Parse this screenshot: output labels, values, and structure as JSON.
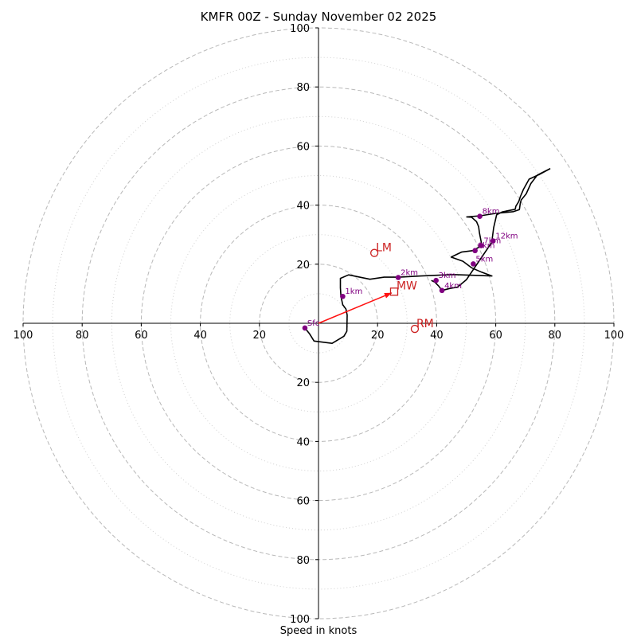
{
  "chart_data": {
    "type": "hodograph",
    "title": "KMFR 00Z - Sunday November 02 2025",
    "xlabel": "Speed in knots",
    "range": [
      -100,
      100
    ],
    "rings_major": [
      20,
      40,
      60,
      80,
      100
    ],
    "rings_minor": [
      10,
      30,
      50,
      70,
      90
    ],
    "x_ticks": [
      "100",
      "80",
      "60",
      "40",
      "20",
      "20",
      "40",
      "60",
      "80",
      "100"
    ],
    "y_ticks": [
      "100",
      "80",
      "60",
      "40",
      "20",
      "20",
      "40",
      "60",
      "80",
      "100"
    ],
    "trace": [
      [
        -4.6,
        -1.6
      ],
      [
        -3,
        -3.6
      ],
      [
        -1.5,
        -6
      ],
      [
        4.6,
        -6.8
      ],
      [
        8.6,
        -4.4
      ],
      [
        9.6,
        -2.7
      ],
      [
        9.7,
        2.8
      ],
      [
        9.3,
        4.8
      ],
      [
        8.2,
        6.3
      ],
      [
        7.6,
        9.1
      ],
      [
        7.4,
        12
      ],
      [
        7.4,
        15.2
      ],
      [
        10.2,
        16.4
      ],
      [
        17.4,
        14.9
      ],
      [
        22.2,
        15.6
      ],
      [
        27.2,
        15.6
      ],
      [
        34.7,
        16.0
      ],
      [
        45.5,
        16.5
      ],
      [
        58.7,
        16.0
      ],
      [
        55.2,
        17.3
      ],
      [
        51.8,
        18.8
      ],
      [
        48.9,
        21.0
      ],
      [
        44.9,
        22.4
      ],
      [
        48.4,
        24.1
      ],
      [
        52.4,
        24.6
      ],
      [
        55.3,
        26.4
      ],
      [
        55.0,
        28.0
      ],
      [
        54.5,
        30.5
      ],
      [
        54.2,
        32.7
      ],
      [
        53.5,
        34.4
      ],
      [
        51.8,
        35.9
      ],
      [
        50.2,
        36.0
      ],
      [
        54.8,
        36.4
      ],
      [
        60.0,
        37.2
      ],
      [
        66.0,
        37.8
      ],
      [
        68.0,
        38.5
      ],
      [
        68.3,
        40.6
      ],
      [
        68.6,
        41.7
      ],
      [
        70.3,
        43.8
      ],
      [
        71.9,
        47.3
      ],
      [
        74.1,
        50.2
      ],
      [
        78.3,
        52.3
      ],
      [
        74.8,
        50.4
      ],
      [
        71.3,
        48.8
      ],
      [
        69.4,
        45.4
      ],
      [
        68.3,
        42.8
      ],
      [
        67.8,
        41.2
      ],
      [
        66.8,
        39.6
      ],
      [
        66.6,
        38.6
      ],
      [
        62.2,
        37.7
      ],
      [
        60.3,
        36.7
      ],
      [
        59.3,
        32.4
      ],
      [
        58.8,
        28.5
      ],
      [
        59.0,
        27.9
      ],
      [
        50.1,
        14.8
      ],
      [
        47.0,
        12.2
      ],
      [
        44.5,
        11.8
      ],
      [
        41.8,
        11.1
      ],
      [
        40.7,
        12.6
      ],
      [
        39.3,
        14.0
      ],
      [
        38.2,
        14.5
      ]
    ],
    "height_points": [
      {
        "label": "Sfc",
        "u": -4.6,
        "v": -1.6
      },
      {
        "label": "1km",
        "u": 8.2,
        "v": 9.1
      },
      {
        "label": "2km",
        "u": 27.0,
        "v": 15.5
      },
      {
        "label": "3km",
        "u": 39.8,
        "v": 14.5
      },
      {
        "label": "4km",
        "u": 41.8,
        "v": 11.1
      },
      {
        "label": "5km",
        "u": 52.4,
        "v": 20.1
      },
      {
        "label": "6km",
        "u": 53.0,
        "v": 24.6
      },
      {
        "label": "7km",
        "u": 55.1,
        "v": 26.3
      },
      {
        "label": "8km",
        "u": 54.6,
        "v": 36.2
      },
      {
        "label": "12km",
        "u": 59.1,
        "v": 27.9
      }
    ],
    "markers": {
      "lm": {
        "label": "LM",
        "u": 18.9,
        "v": 23.8
      },
      "mw": {
        "label": "MW",
        "u": 25.6,
        "v": 10.7
      },
      "rm": {
        "label": "RM",
        "u": 32.6,
        "v": -1.9
      }
    },
    "colors": {
      "trace": "#000000",
      "height_point": "#800080",
      "marker": "#cc2222",
      "shear_vector": "#ff1111",
      "ring_major": "#b8b8b8",
      "ring_minor": "#d0d0d0",
      "axis": "#000000"
    }
  }
}
